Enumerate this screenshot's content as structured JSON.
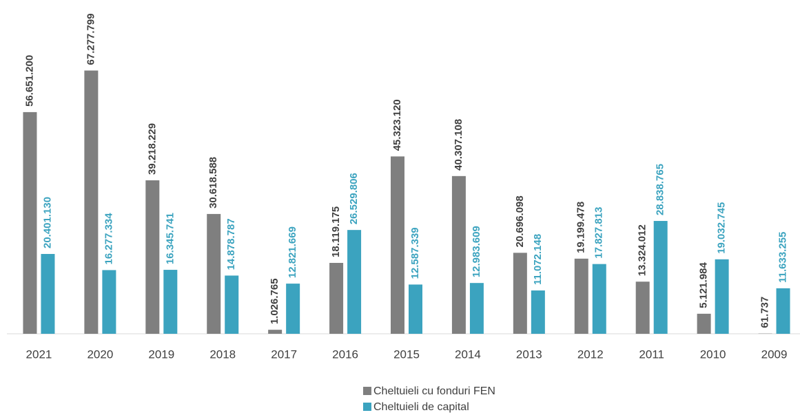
{
  "chart_data": {
    "type": "bar",
    "categories": [
      "2021",
      "2020",
      "2019",
      "2018",
      "2017",
      "2016",
      "2015",
      "2014",
      "2013",
      "2012",
      "2011",
      "2010",
      "2009"
    ],
    "series": [
      {
        "name": "Cheltuieli cu fonduri FEN",
        "color": "#7f7f7f",
        "label_color": "#404040",
        "values": [
          56651200,
          67277799,
          39218229,
          30618588,
          1026765,
          18119175,
          45323120,
          40307108,
          20696098,
          19199478,
          13324012,
          5121984,
          61737
        ],
        "value_labels": [
          "56.651.200",
          "67.277.799",
          "39.218.229",
          "30.618.588",
          "1.026.765",
          "18.119.175",
          "45.323.120",
          "40.307.108",
          "20.696.098",
          "19.199.478",
          "13.324.012",
          "5.121.984",
          "61.737"
        ]
      },
      {
        "name": "Cheltuieli de capital",
        "color": "#3ba3bf",
        "label_color": "#3ba3bf",
        "values": [
          20401130,
          16277334,
          16345741,
          14878787,
          12821669,
          26529806,
          12587339,
          12983609,
          11072148,
          17827813,
          28838765,
          19032745,
          11633255
        ],
        "value_labels": [
          "20.401.130",
          "16.277.334",
          "16.345.741",
          "14.878.787",
          "12.821.669",
          "26.529.806",
          "12.587.339",
          "12.983.609",
          "11.072.148",
          "17.827.813",
          "28.838.765",
          "19.032.745",
          "11.633.255"
        ]
      }
    ],
    "ylim": [
      0,
      70000000
    ],
    "legend": "bottom"
  }
}
